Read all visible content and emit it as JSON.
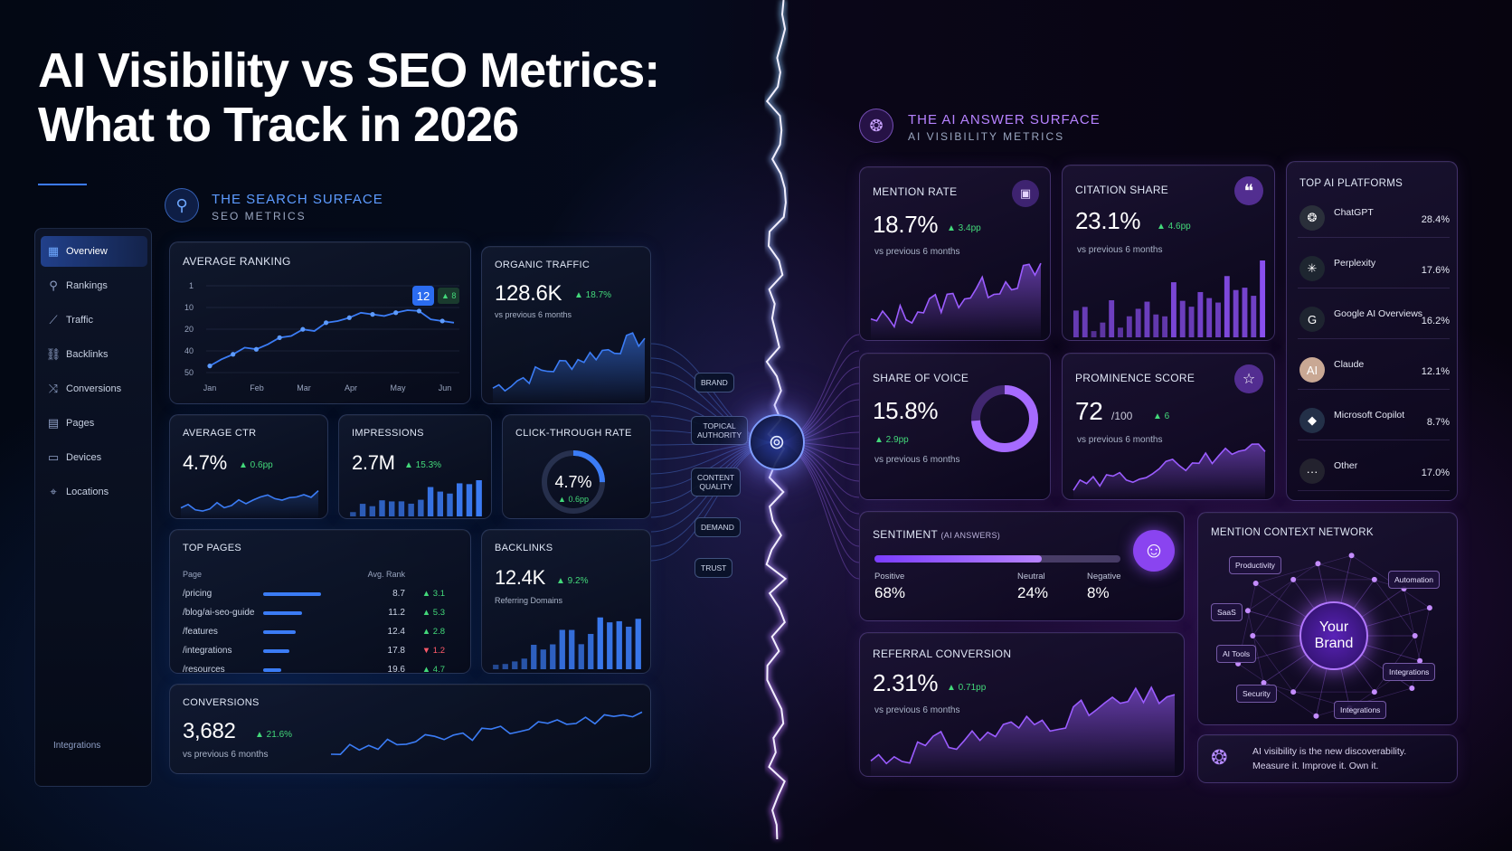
{
  "headline": {
    "line1": "AI Visibility vs SEO Metrics:",
    "line2": "What to Track in 2026"
  },
  "seo": {
    "heading": "THE SEARCH SURFACE",
    "subheading": "SEO METRICS",
    "sidebar": {
      "items": [
        {
          "label": "Overview",
          "icon": "bar-chart-icon",
          "glyph": "▦",
          "active": true
        },
        {
          "label": "Rankings",
          "icon": "rankings-icon",
          "glyph": "⚲",
          "active": false
        },
        {
          "label": "Traffic",
          "icon": "traffic-icon",
          "glyph": "⟋",
          "active": false
        },
        {
          "label": "Backlinks",
          "icon": "link-icon",
          "glyph": "⛓",
          "active": false
        },
        {
          "label": "Conversions",
          "icon": "conversions-icon",
          "glyph": "⤨",
          "active": false
        },
        {
          "label": "Pages",
          "icon": "pages-icon",
          "glyph": "▤",
          "active": false
        },
        {
          "label": "Devices",
          "icon": "devices-icon",
          "glyph": "▭",
          "active": false
        },
        {
          "label": "Locations",
          "icon": "location-pin-icon",
          "glyph": "⌖",
          "active": false
        }
      ],
      "footer": "Integrations"
    },
    "average_ranking": {
      "title": "AVERAGE RANKING",
      "current": "12",
      "delta": "▲ 8",
      "y_ticks": [
        "1",
        "10",
        "20",
        "40",
        "50"
      ],
      "x_ticks": [
        "Jan",
        "Feb",
        "Mar",
        "Apr",
        "May",
        "Jun"
      ]
    },
    "organic_traffic": {
      "title": "ORGANIC TRAFFIC",
      "value": "128.6K",
      "delta": "▲ 18.7%",
      "sub": "vs previous 6 months"
    },
    "average_ctr": {
      "title": "AVERAGE CTR",
      "value": "4.7%",
      "delta": "▲ 0.6pp"
    },
    "impressions": {
      "title": "IMPRESSIONS",
      "value": "2.7M",
      "delta": "▲ 15.3%"
    },
    "click_through_rate": {
      "title": "CLICK-THROUGH RATE",
      "value": "4.7%",
      "delta": "▲ 0.6pp",
      "fraction": 0.25
    },
    "top_pages": {
      "title": "TOP PAGES",
      "col_page": "Page",
      "col_rank": "Avg. Rank",
      "rows": [
        {
          "page": "/pricing",
          "rank": "8.7",
          "delta": "▲ 3.1",
          "dir": "up",
          "share": 0.92
        },
        {
          "page": "/blog/ai-seo-guide",
          "rank": "11.2",
          "delta": "▲ 5.3",
          "dir": "up",
          "share": 0.62
        },
        {
          "page": "/features",
          "rank": "12.4",
          "delta": "▲ 2.8",
          "dir": "up",
          "share": 0.52
        },
        {
          "page": "/integrations",
          "rank": "17.8",
          "delta": "▼ 1.2",
          "dir": "down",
          "share": 0.42
        },
        {
          "page": "/resources",
          "rank": "19.6",
          "delta": "▲ 4.7",
          "dir": "up",
          "share": 0.28
        }
      ]
    },
    "backlinks": {
      "title": "BACKLINKS",
      "value": "12.4K",
      "delta": "▲ 9.2%",
      "sub": "Referring Domains"
    },
    "conversions": {
      "title": "CONVERSIONS",
      "value": "3,682",
      "delta": "▲ 21.6%",
      "sub": "vs previous 6 months"
    }
  },
  "connectors": {
    "labels": [
      "BRAND",
      "TOPICAL\nAUTHORITY",
      "CONTENT\nQUALITY",
      "DEMAND",
      "TRUST"
    ]
  },
  "ai": {
    "heading": "THE AI ANSWER SURFACE",
    "subheading": "AI VISIBILITY METRICS",
    "mention_rate": {
      "title": "MENTION RATE",
      "value": "18.7%",
      "delta": "▲ 3.4pp",
      "sub": "vs previous 6 months"
    },
    "citation_share": {
      "title": "CITATION SHARE",
      "value": "23.1%",
      "delta": "▲ 4.6pp",
      "sub": "vs previous 6 months"
    },
    "share_of_voice": {
      "title": "SHARE OF VOICE",
      "value": "15.8%",
      "delta": "▲ 2.9pp",
      "sub": "vs previous 6 months",
      "fraction": 0.158
    },
    "prominence_score": {
      "title": "PROMINENCE SCORE",
      "value": "72",
      "unit": "/100",
      "delta": "▲ 6",
      "sub": "vs previous 6 months"
    },
    "top_platforms": {
      "title": "TOP AI PLATFORMS",
      "rows": [
        {
          "name": "ChatGPT",
          "pct": "28.4%",
          "icon": "chatgpt-logo-icon",
          "glyph": "❂",
          "color": "#2a2f3a"
        },
        {
          "name": "Perplexity",
          "pct": "17.6%",
          "icon": "perplexity-logo-icon",
          "glyph": "✳",
          "color": "#1e2630"
        },
        {
          "name": "Google AI Overviews",
          "pct": "16.2%",
          "icon": "google-logo-icon",
          "glyph": "G",
          "color": "#1e2430"
        },
        {
          "name": "Claude",
          "pct": "12.1%",
          "icon": "claude-logo-icon",
          "glyph": "AI",
          "color": "#c9a894"
        },
        {
          "name": "Microsoft Copilot",
          "pct": "8.7%",
          "icon": "copilot-logo-icon",
          "glyph": "◆",
          "color": "#233048"
        },
        {
          "name": "Other",
          "pct": "17.0%",
          "icon": "more-icon",
          "glyph": "···",
          "color": "#23222e"
        }
      ]
    },
    "sentiment": {
      "title": "SENTIMENT",
      "title_note": "(AI ANSWERS)",
      "positive_label": "Positive",
      "positive": "68%",
      "neutral_label": "Neutral",
      "neutral": "24%",
      "negative_label": "Negative",
      "negative": "8%",
      "positive_fraction": 0.68
    },
    "referral_conversion": {
      "title": "REFERRAL CONVERSION",
      "value": "2.31%",
      "delta": "▲ 0.71pp",
      "sub": "vs previous 6 months"
    },
    "context_network": {
      "title": "MENTION CONTEXT NETWORK",
      "center": "Your\nBrand",
      "tags": [
        "Productivity",
        "Automation",
        "SaaS",
        "AI Tools",
        "Integrations",
        "Security",
        "Integrations"
      ]
    },
    "tagline": {
      "line1": "AI visibility is the new discoverability.",
      "line2": "Measure it. Improve it. Own it."
    }
  },
  "colors": {
    "seo_accent": "#3c7bff",
    "ai_accent": "#9b5cff",
    "positive": "#43d97a",
    "negative": "#ff5a6a"
  }
}
